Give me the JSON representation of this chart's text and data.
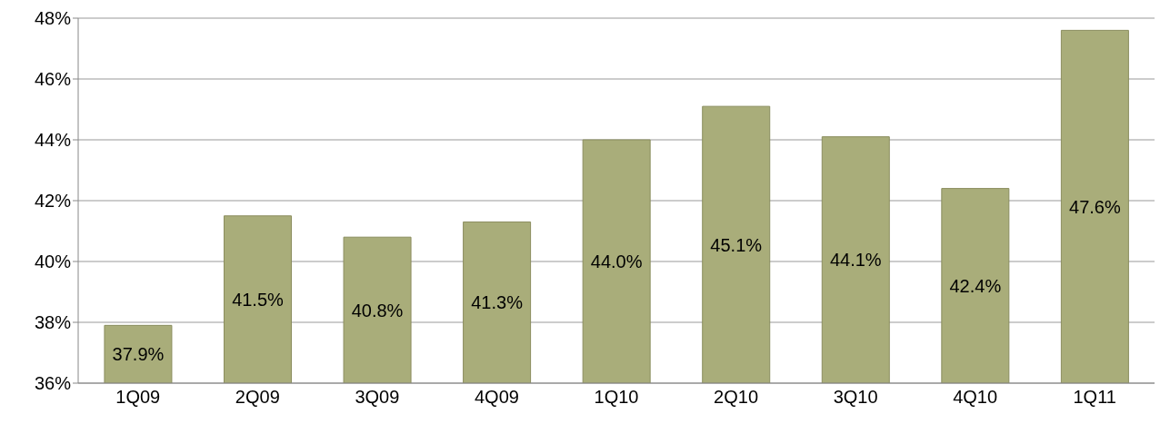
{
  "chart_data": {
    "type": "bar",
    "categories": [
      "1Q09",
      "2Q09",
      "3Q09",
      "4Q09",
      "1Q10",
      "2Q10",
      "3Q10",
      "4Q10",
      "1Q11"
    ],
    "values": [
      37.9,
      41.5,
      40.8,
      41.3,
      44.0,
      45.1,
      44.1,
      42.4,
      47.6
    ],
    "value_labels": [
      "37.9%",
      "41.5%",
      "40.8%",
      "41.3%",
      "44.0%",
      "45.1%",
      "44.1%",
      "42.4%",
      "47.6%"
    ],
    "color": "#a9ad7a",
    "ylim": [
      36,
      48
    ],
    "yticks": [
      {
        "value": 36,
        "label": "36%"
      },
      {
        "value": 38,
        "label": "38%"
      },
      {
        "value": 40,
        "label": "40%"
      },
      {
        "value": 42,
        "label": "42%"
      },
      {
        "value": 44,
        "label": "44%"
      },
      {
        "value": 46,
        "label": "46%"
      },
      {
        "value": 48,
        "label": "48%"
      }
    ],
    "grid": "y",
    "legend": false
  }
}
